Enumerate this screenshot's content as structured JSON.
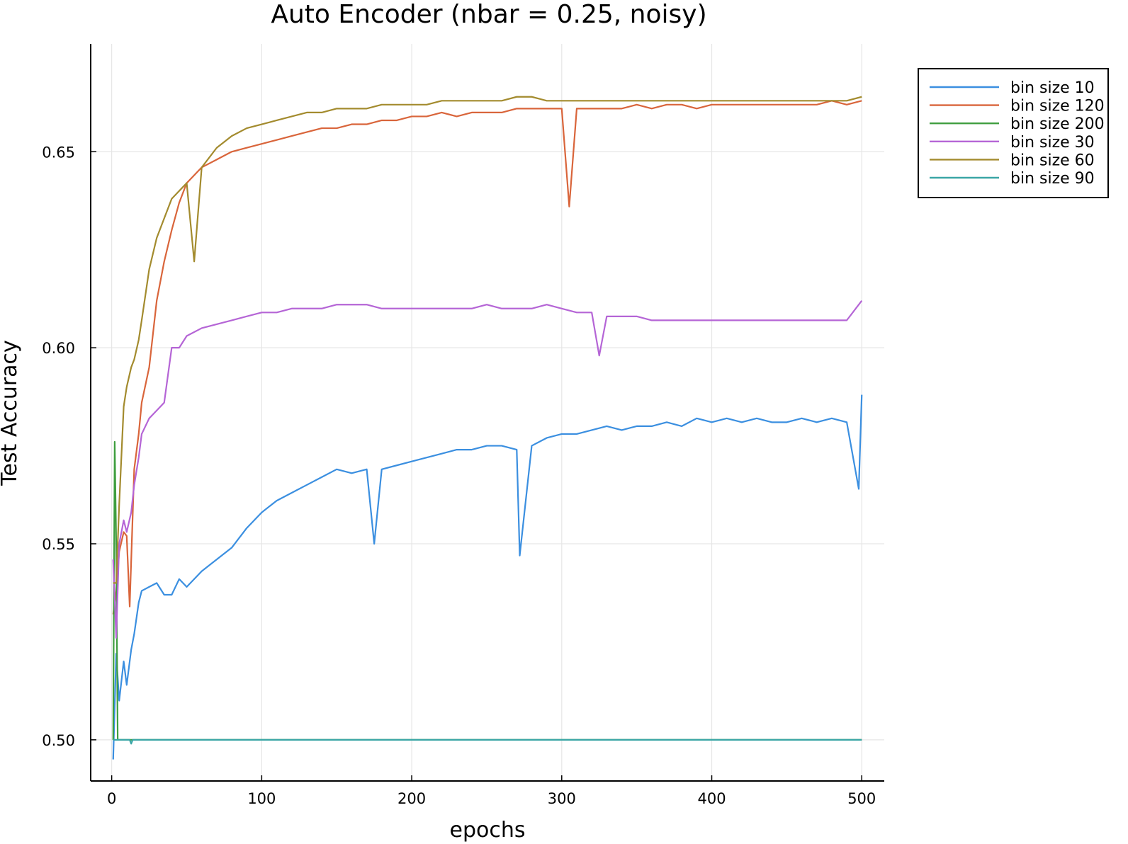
{
  "chart_data": {
    "type": "line",
    "title": "Auto Encoder (nbar = 0.25, noisy)",
    "xlabel": "epochs",
    "ylabel": "Test Accuracy",
    "xlim": [
      -14,
      515
    ],
    "ylim": [
      0.4895,
      0.6775
    ],
    "xticks": [
      0,
      100,
      200,
      300,
      400,
      500
    ],
    "yticks": [
      0.5,
      0.55,
      0.6,
      0.65
    ],
    "xtick_labels": [
      "0",
      "100",
      "200",
      "300",
      "400",
      "500"
    ],
    "ytick_labels": [
      "0.50",
      "0.55",
      "0.60",
      "0.65"
    ],
    "grid": true,
    "legend_position": "top-right",
    "series": [
      {
        "name": "bin size 10",
        "color": "#3b8fe0",
        "x": [
          1,
          3,
          5,
          8,
          10,
          13,
          15,
          18,
          20,
          25,
          30,
          35,
          40,
          45,
          50,
          60,
          70,
          80,
          90,
          100,
          110,
          120,
          130,
          140,
          150,
          160,
          170,
          175,
          180,
          190,
          200,
          210,
          220,
          230,
          240,
          250,
          260,
          270,
          272,
          280,
          290,
          300,
          310,
          320,
          330,
          340,
          350,
          360,
          370,
          380,
          390,
          400,
          410,
          420,
          430,
          440,
          450,
          460,
          470,
          480,
          490,
          498,
          500
        ],
        "values": [
          0.495,
          0.522,
          0.51,
          0.52,
          0.514,
          0.523,
          0.527,
          0.535,
          0.538,
          0.539,
          0.54,
          0.537,
          0.537,
          0.541,
          0.539,
          0.543,
          0.546,
          0.549,
          0.554,
          0.558,
          0.561,
          0.563,
          0.565,
          0.567,
          0.569,
          0.568,
          0.569,
          0.55,
          0.569,
          0.57,
          0.571,
          0.572,
          0.573,
          0.574,
          0.574,
          0.575,
          0.575,
          0.574,
          0.547,
          0.575,
          0.577,
          0.578,
          0.578,
          0.579,
          0.58,
          0.579,
          0.58,
          0.58,
          0.581,
          0.58,
          0.582,
          0.581,
          0.582,
          0.581,
          0.582,
          0.581,
          0.581,
          0.582,
          0.581,
          0.582,
          0.581,
          0.564,
          0.588
        ]
      },
      {
        "name": "bin size 120",
        "color": "#d9653b",
        "x": [
          1,
          3,
          5,
          8,
          10,
          12,
          15,
          18,
          20,
          25,
          30,
          35,
          40,
          45,
          50,
          60,
          70,
          80,
          90,
          100,
          110,
          120,
          130,
          140,
          150,
          160,
          170,
          180,
          190,
          200,
          210,
          220,
          230,
          240,
          250,
          260,
          270,
          280,
          290,
          300,
          305,
          310,
          320,
          330,
          340,
          350,
          360,
          370,
          380,
          390,
          400,
          410,
          420,
          430,
          440,
          450,
          460,
          470,
          480,
          490,
          500
        ],
        "values": [
          0.532,
          0.538,
          0.548,
          0.553,
          0.552,
          0.534,
          0.569,
          0.578,
          0.586,
          0.595,
          0.612,
          0.622,
          0.63,
          0.637,
          0.642,
          0.646,
          0.648,
          0.65,
          0.651,
          0.652,
          0.653,
          0.654,
          0.655,
          0.656,
          0.656,
          0.657,
          0.657,
          0.658,
          0.658,
          0.659,
          0.659,
          0.66,
          0.659,
          0.66,
          0.66,
          0.66,
          0.661,
          0.661,
          0.661,
          0.661,
          0.636,
          0.661,
          0.661,
          0.661,
          0.661,
          0.662,
          0.661,
          0.662,
          0.662,
          0.661,
          0.662,
          0.662,
          0.662,
          0.662,
          0.662,
          0.662,
          0.662,
          0.662,
          0.663,
          0.662,
          0.663
        ]
      },
      {
        "name": "bin size 200",
        "color": "#3f9e3f",
        "x": [
          1,
          2,
          3,
          4,
          5,
          10,
          20,
          50,
          100,
          200,
          300,
          400,
          500
        ],
        "values": [
          0.5,
          0.576,
          0.55,
          0.5,
          0.5,
          0.5,
          0.5,
          0.5,
          0.5,
          0.5,
          0.5,
          0.5,
          0.5
        ]
      },
      {
        "name": "bin size 30",
        "color": "#b565d6",
        "x": [
          1,
          3,
          5,
          8,
          10,
          13,
          15,
          18,
          20,
          25,
          30,
          35,
          40,
          45,
          50,
          60,
          70,
          80,
          90,
          100,
          110,
          120,
          130,
          140,
          150,
          160,
          170,
          180,
          190,
          200,
          210,
          220,
          230,
          240,
          250,
          260,
          270,
          280,
          290,
          300,
          310,
          320,
          325,
          330,
          340,
          350,
          360,
          370,
          380,
          390,
          400,
          410,
          420,
          430,
          440,
          450,
          460,
          470,
          480,
          490,
          500
        ],
        "values": [
          0.546,
          0.526,
          0.55,
          0.556,
          0.553,
          0.558,
          0.565,
          0.572,
          0.578,
          0.582,
          0.584,
          0.586,
          0.6,
          0.6,
          0.603,
          0.605,
          0.606,
          0.607,
          0.608,
          0.609,
          0.609,
          0.61,
          0.61,
          0.61,
          0.611,
          0.611,
          0.611,
          0.61,
          0.61,
          0.61,
          0.61,
          0.61,
          0.61,
          0.61,
          0.611,
          0.61,
          0.61,
          0.61,
          0.611,
          0.61,
          0.609,
          0.609,
          0.598,
          0.608,
          0.608,
          0.608,
          0.607,
          0.607,
          0.607,
          0.607,
          0.607,
          0.607,
          0.607,
          0.607,
          0.607,
          0.607,
          0.607,
          0.607,
          0.607,
          0.607,
          0.612
        ]
      },
      {
        "name": "bin size 60",
        "color": "#a38b2e",
        "x": [
          1,
          3,
          5,
          8,
          10,
          13,
          15,
          18,
          20,
          25,
          30,
          35,
          40,
          45,
          50,
          55,
          60,
          70,
          80,
          90,
          100,
          110,
          120,
          130,
          140,
          150,
          160,
          170,
          180,
          190,
          200,
          210,
          220,
          230,
          240,
          250,
          260,
          270,
          280,
          290,
          300,
          310,
          320,
          330,
          340,
          350,
          360,
          370,
          380,
          390,
          400,
          410,
          420,
          430,
          440,
          450,
          460,
          470,
          480,
          490,
          500
        ],
        "values": [
          0.54,
          0.54,
          0.56,
          0.585,
          0.59,
          0.595,
          0.597,
          0.602,
          0.607,
          0.62,
          0.628,
          0.633,
          0.638,
          0.64,
          0.642,
          0.622,
          0.646,
          0.651,
          0.654,
          0.656,
          0.657,
          0.658,
          0.659,
          0.66,
          0.66,
          0.661,
          0.661,
          0.661,
          0.662,
          0.662,
          0.662,
          0.662,
          0.663,
          0.663,
          0.663,
          0.663,
          0.663,
          0.664,
          0.664,
          0.663,
          0.663,
          0.663,
          0.663,
          0.663,
          0.663,
          0.663,
          0.663,
          0.663,
          0.663,
          0.663,
          0.663,
          0.663,
          0.663,
          0.663,
          0.663,
          0.663,
          0.663,
          0.663,
          0.663,
          0.663,
          0.664
        ]
      },
      {
        "name": "bin size 90",
        "color": "#3aa6a6",
        "x": [
          1,
          2,
          5,
          10,
          12,
          13,
          14,
          20,
          50,
          100,
          200,
          300,
          400,
          500
        ],
        "values": [
          0.5,
          0.5,
          0.5,
          0.5,
          0.5,
          0.499,
          0.5,
          0.5,
          0.5,
          0.5,
          0.5,
          0.5,
          0.5,
          0.5
        ]
      }
    ]
  }
}
